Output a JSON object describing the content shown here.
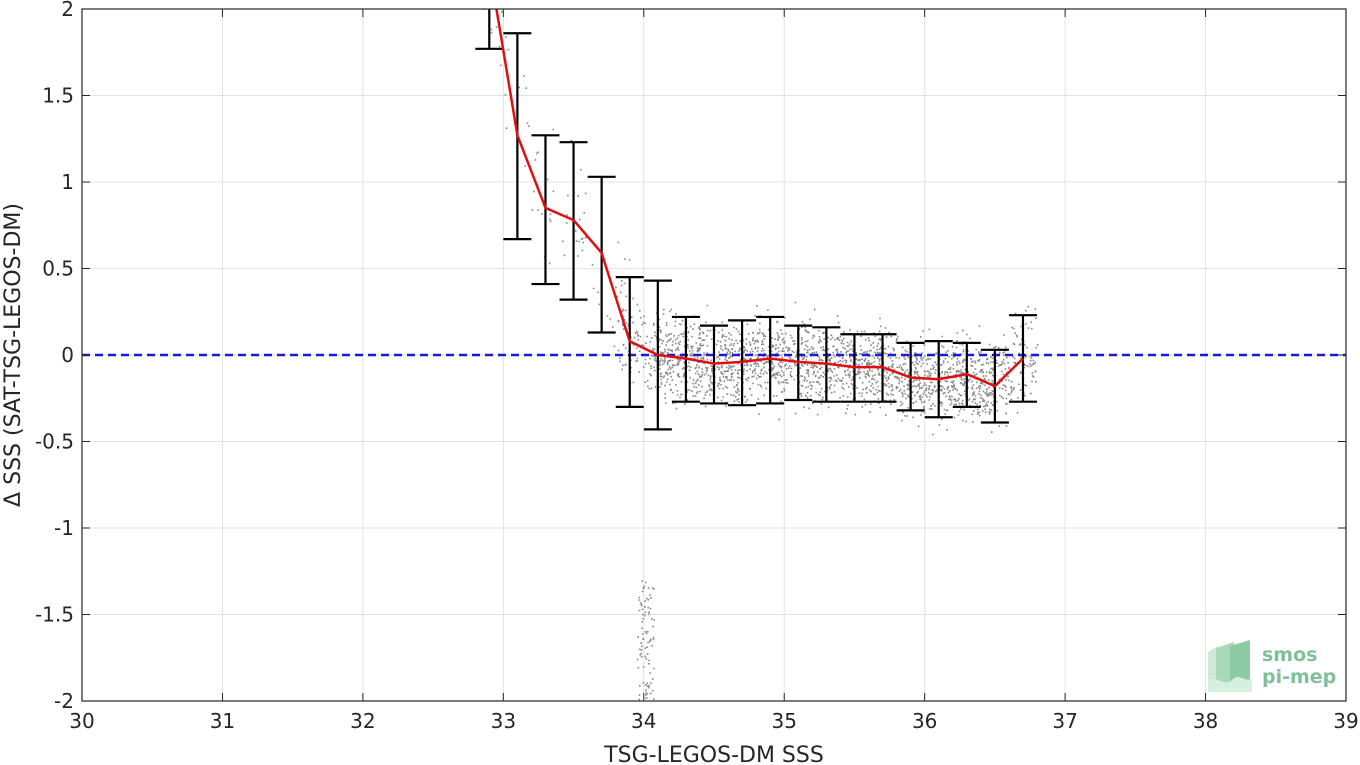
{
  "chart_data": {
    "type": "scatter",
    "xlabel": "TSG-LEGOS-DM SSS",
    "ylabel": "Δ SSS (SAT-TSG-LEGOS-DM)",
    "xlim": [
      30,
      39
    ],
    "ylim": [
      -2,
      2
    ],
    "xticks": [
      30,
      31,
      32,
      33,
      34,
      35,
      36,
      37,
      38,
      39
    ],
    "xtick_labels": [
      "30",
      "31",
      "32",
      "33",
      "34",
      "35",
      "36",
      "37",
      "38",
      "39"
    ],
    "yticks": [
      2,
      1.5,
      1,
      0.5,
      0,
      -0.5,
      -1,
      -1.5,
      -2
    ],
    "ytick_labels": [
      "2",
      "1.5",
      "1",
      "0.5",
      "0",
      "-0.5",
      "-1",
      "-1.5",
      "-2"
    ],
    "grid": true,
    "reference_line": {
      "y": 0,
      "color": "#1a1ad6",
      "style": "dashed"
    },
    "mean_series": {
      "color": "#e01010",
      "x": [
        32.9,
        33.1,
        33.3,
        33.5,
        33.7,
        33.9,
        34.1,
        34.3,
        34.5,
        34.7,
        34.9,
        35.1,
        35.3,
        35.5,
        35.7,
        35.9,
        36.1,
        36.3,
        36.5,
        36.7
      ],
      "y": [
        2.25,
        1.27,
        0.85,
        0.78,
        0.59,
        0.08,
        0.0,
        -0.02,
        -0.05,
        -0.04,
        -0.02,
        -0.04,
        -0.05,
        -0.07,
        -0.07,
        -0.13,
        -0.14,
        -0.11,
        -0.18,
        -0.02
      ]
    },
    "error_bars": {
      "color": "#000000",
      "x": [
        32.9,
        33.1,
        33.3,
        33.5,
        33.7,
        33.9,
        34.1,
        34.3,
        34.5,
        34.7,
        34.9,
        35.1,
        35.3,
        35.5,
        35.7,
        35.9,
        36.1,
        36.3,
        36.5,
        36.7
      ],
      "upper": [
        2.6,
        1.86,
        1.27,
        1.23,
        1.03,
        0.45,
        0.43,
        0.22,
        0.17,
        0.2,
        0.22,
        0.17,
        0.16,
        0.12,
        0.12,
        0.07,
        0.08,
        0.07,
        0.03,
        0.23
      ],
      "lower": [
        1.77,
        0.67,
        0.41,
        0.32,
        0.13,
        -0.3,
        -0.43,
        -0.27,
        -0.28,
        -0.29,
        -0.28,
        -0.26,
        -0.27,
        -0.27,
        -0.27,
        -0.32,
        -0.36,
        -0.3,
        -0.39,
        -0.27
      ]
    },
    "scatter": {
      "color": "#888888",
      "description_points_generated": true
    }
  },
  "logo": {
    "line1": "smos",
    "line2": "pi-mep"
  }
}
